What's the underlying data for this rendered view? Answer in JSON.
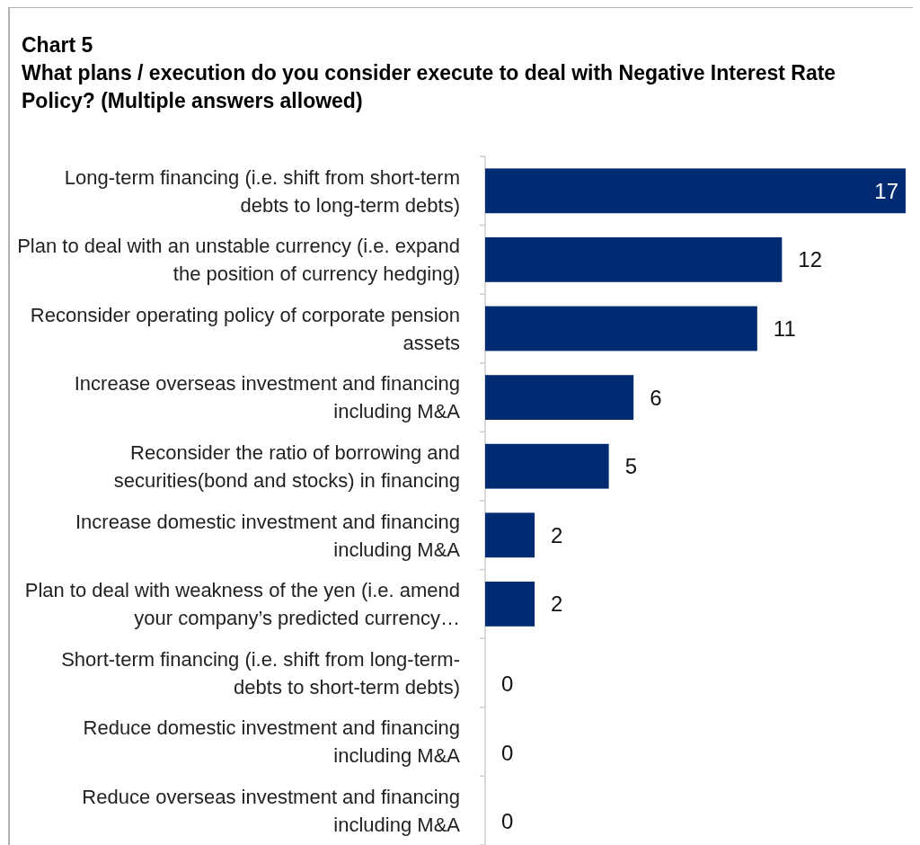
{
  "chart_data": {
    "type": "bar",
    "orientation": "horizontal",
    "title": "Chart 5",
    "subtitle": "What plans / execution do you consider execute to deal with Negative Interest Rate Policy? (Multiple answers allowed)",
    "categories": [
      "Long-term financing (i.e. shift from short-term debts to long-term debts)",
      "Plan to deal with an unstable currency (i.e. expand the position of currency hedging)",
      "Reconsider operating policy of corporate pension assets",
      "Increase overseas investment and financing including M&A",
      "Reconsider the ratio of borrowing and securities(bond and stocks) in financing",
      "Increase domestic investment and financing including M&A",
      "Plan to deal with weakness of the yen (i.e. amend your company’s predicted currency…",
      "Short-term financing (i.e. shift from long-term-debts to short-term debts)",
      "Reduce domestic investment and financing including M&A",
      "Reduce overseas investment and financing including M&A"
    ],
    "values": [
      17,
      12,
      11,
      6,
      5,
      2,
      2,
      0,
      0,
      0
    ],
    "color": "#002b73",
    "data_labels": true
  }
}
